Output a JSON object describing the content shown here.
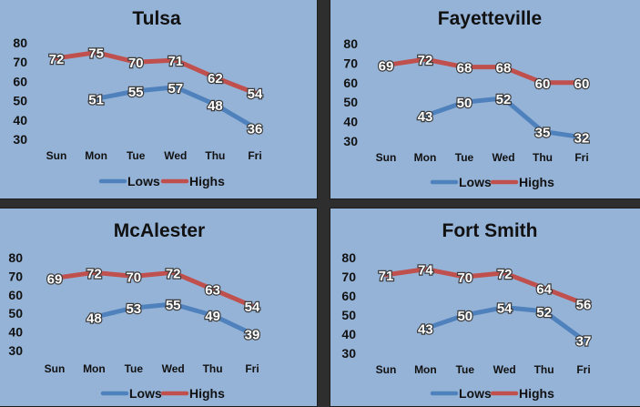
{
  "chart_data": [
    {
      "type": "line",
      "title": "Tulsa",
      "categories": [
        "Sun",
        "Mon",
        "Tue",
        "Wed",
        "Thu",
        "Fri"
      ],
      "series": [
        {
          "name": "Lows",
          "values": [
            null,
            51,
            55,
            57,
            48,
            36
          ],
          "color": "#4f81bd"
        },
        {
          "name": "Highs",
          "values": [
            72,
            75,
            70,
            71,
            62,
            54
          ],
          "color": "#c0504d"
        }
      ],
      "ylim": [
        30,
        80
      ],
      "yticks": [
        30,
        40,
        50,
        60,
        70,
        80
      ],
      "legend": "bottom"
    },
    {
      "type": "line",
      "title": "Fayetteville",
      "categories": [
        "Sun",
        "Mon",
        "Tue",
        "Wed",
        "Thu",
        "Fri"
      ],
      "series": [
        {
          "name": "Lows",
          "values": [
            null,
            43,
            50,
            52,
            35,
            32
          ],
          "color": "#4f81bd"
        },
        {
          "name": "Highs",
          "values": [
            69,
            72,
            68,
            68,
            60,
            60
          ],
          "color": "#c0504d"
        }
      ],
      "ylim": [
        30,
        80
      ],
      "yticks": [
        30,
        40,
        50,
        60,
        70,
        80
      ],
      "legend": "bottom"
    },
    {
      "type": "line",
      "title": "McAlester",
      "categories": [
        "Sun",
        "Mon",
        "Tue",
        "Wed",
        "Thu",
        "Fri"
      ],
      "series": [
        {
          "name": "Lows",
          "values": [
            null,
            48,
            53,
            55,
            49,
            39
          ],
          "color": "#4f81bd"
        },
        {
          "name": "Highs",
          "values": [
            69,
            72,
            70,
            72,
            63,
            54
          ],
          "color": "#c0504d"
        }
      ],
      "ylim": [
        30,
        80
      ],
      "yticks": [
        30,
        40,
        50,
        60,
        70,
        80
      ],
      "legend": "bottom"
    },
    {
      "type": "line",
      "title": "Fort Smith",
      "categories": [
        "Sun",
        "Mon",
        "Tue",
        "Wed",
        "Thu",
        "Fri"
      ],
      "series": [
        {
          "name": "Lows",
          "values": [
            null,
            43,
            50,
            54,
            52,
            37
          ],
          "color": "#4f81bd"
        },
        {
          "name": "Highs",
          "values": [
            71,
            74,
            70,
            72,
            64,
            56
          ],
          "color": "#c0504d"
        }
      ],
      "ylim": [
        30,
        80
      ],
      "yticks": [
        30,
        40,
        50,
        60,
        70,
        80
      ],
      "legend": "bottom"
    }
  ]
}
